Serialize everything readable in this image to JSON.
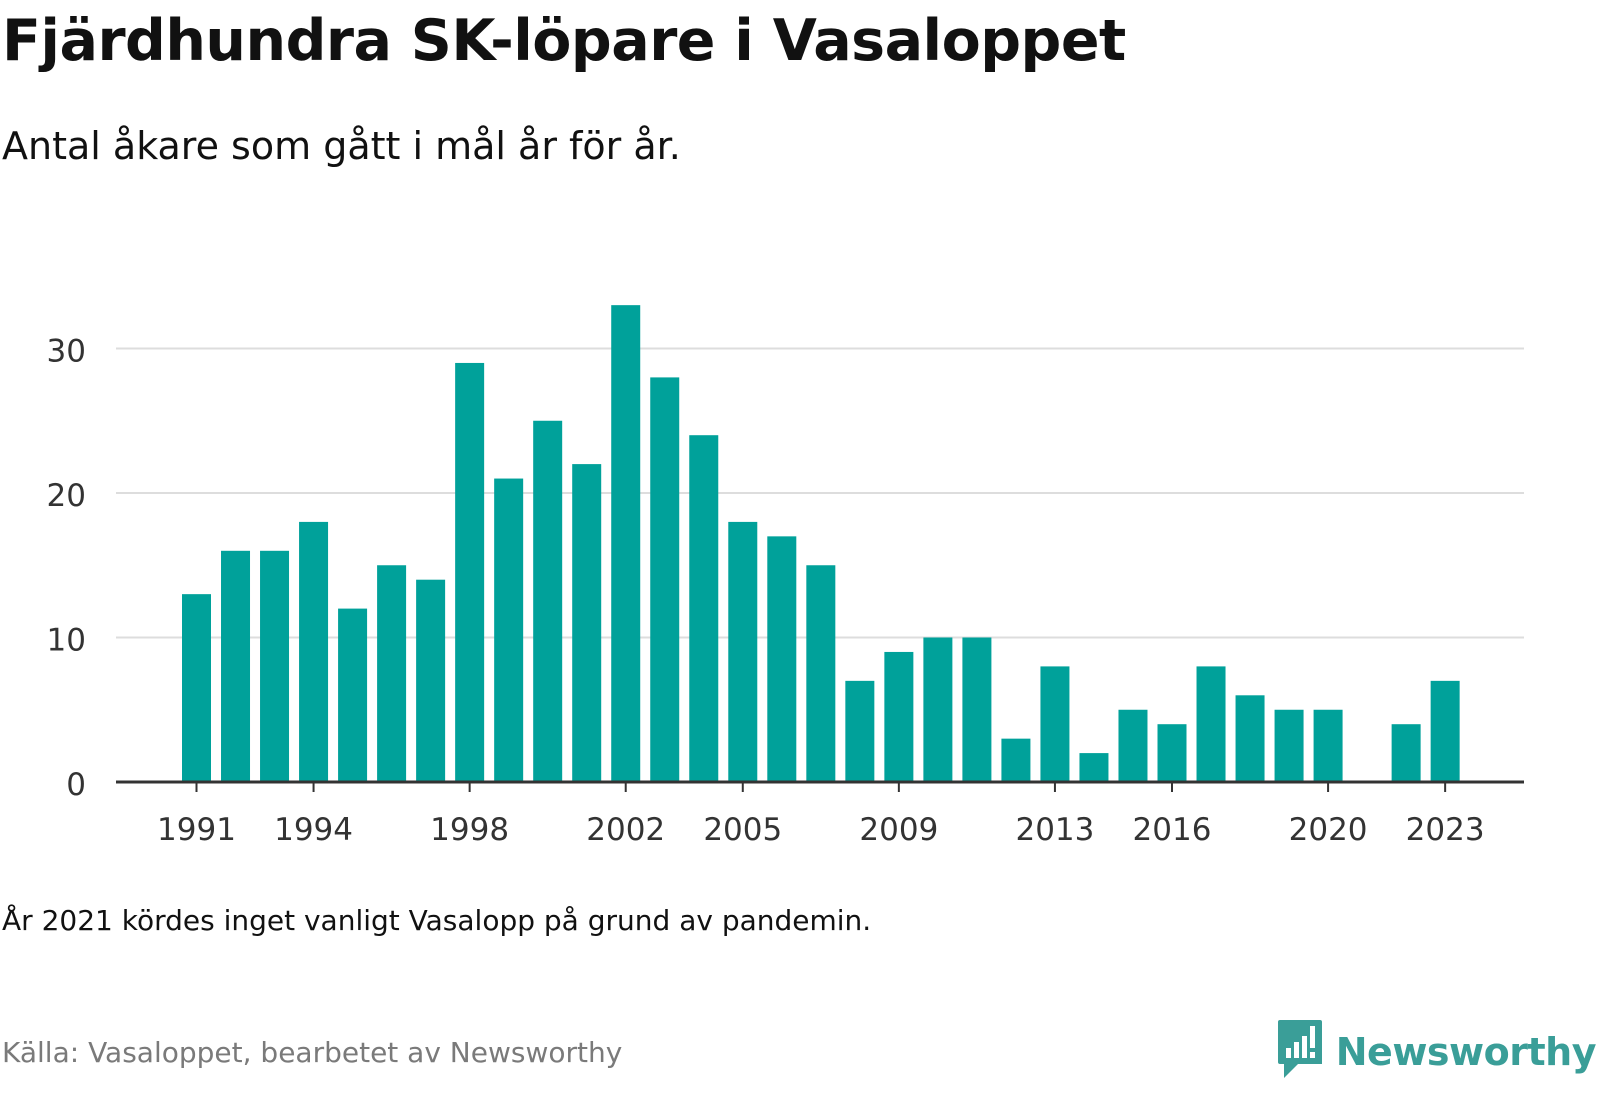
{
  "title": "Fjärdhundra SK-löpare i Vasaloppet",
  "subtitle": "Antal åkare som gått i mål år för år.",
  "note": "År 2021 kördes inget vanligt Vasalopp på grund av pandemin.",
  "source": "Källa: Vasaloppet, bearbetet av Newsworthy",
  "brand": {
    "name": "Newsworthy",
    "icon": "newsworthy-logo-icon"
  },
  "colors": {
    "bar": "#00a19a",
    "brand": "#3a9e98",
    "grid": "#dddddd",
    "axis": "#333333"
  },
  "chart_data": {
    "type": "bar",
    "categories": [
      "1991",
      "1992",
      "1993",
      "1994",
      "1995",
      "1996",
      "1997",
      "1998",
      "1999",
      "2000",
      "2001",
      "2002",
      "2003",
      "2004",
      "2005",
      "2006",
      "2007",
      "2008",
      "2009",
      "2010",
      "2011",
      "2012",
      "2013",
      "2014",
      "2015",
      "2016",
      "2017",
      "2018",
      "2019",
      "2020",
      "2021",
      "2022",
      "2023"
    ],
    "values": [
      13,
      16,
      16,
      18,
      12,
      15,
      14,
      29,
      21,
      25,
      22,
      33,
      28,
      24,
      18,
      17,
      15,
      7,
      9,
      10,
      10,
      3,
      8,
      2,
      5,
      4,
      8,
      6,
      5,
      5,
      null,
      4,
      7
    ],
    "x_tick_labels": [
      "1991",
      "1994",
      "1998",
      "2002",
      "2005",
      "2009",
      "2013",
      "2016",
      "2020",
      "2023"
    ],
    "y_ticks": [
      0,
      10,
      20,
      30
    ],
    "ylim": [
      0,
      35
    ],
    "grid": true,
    "legend": "none"
  }
}
